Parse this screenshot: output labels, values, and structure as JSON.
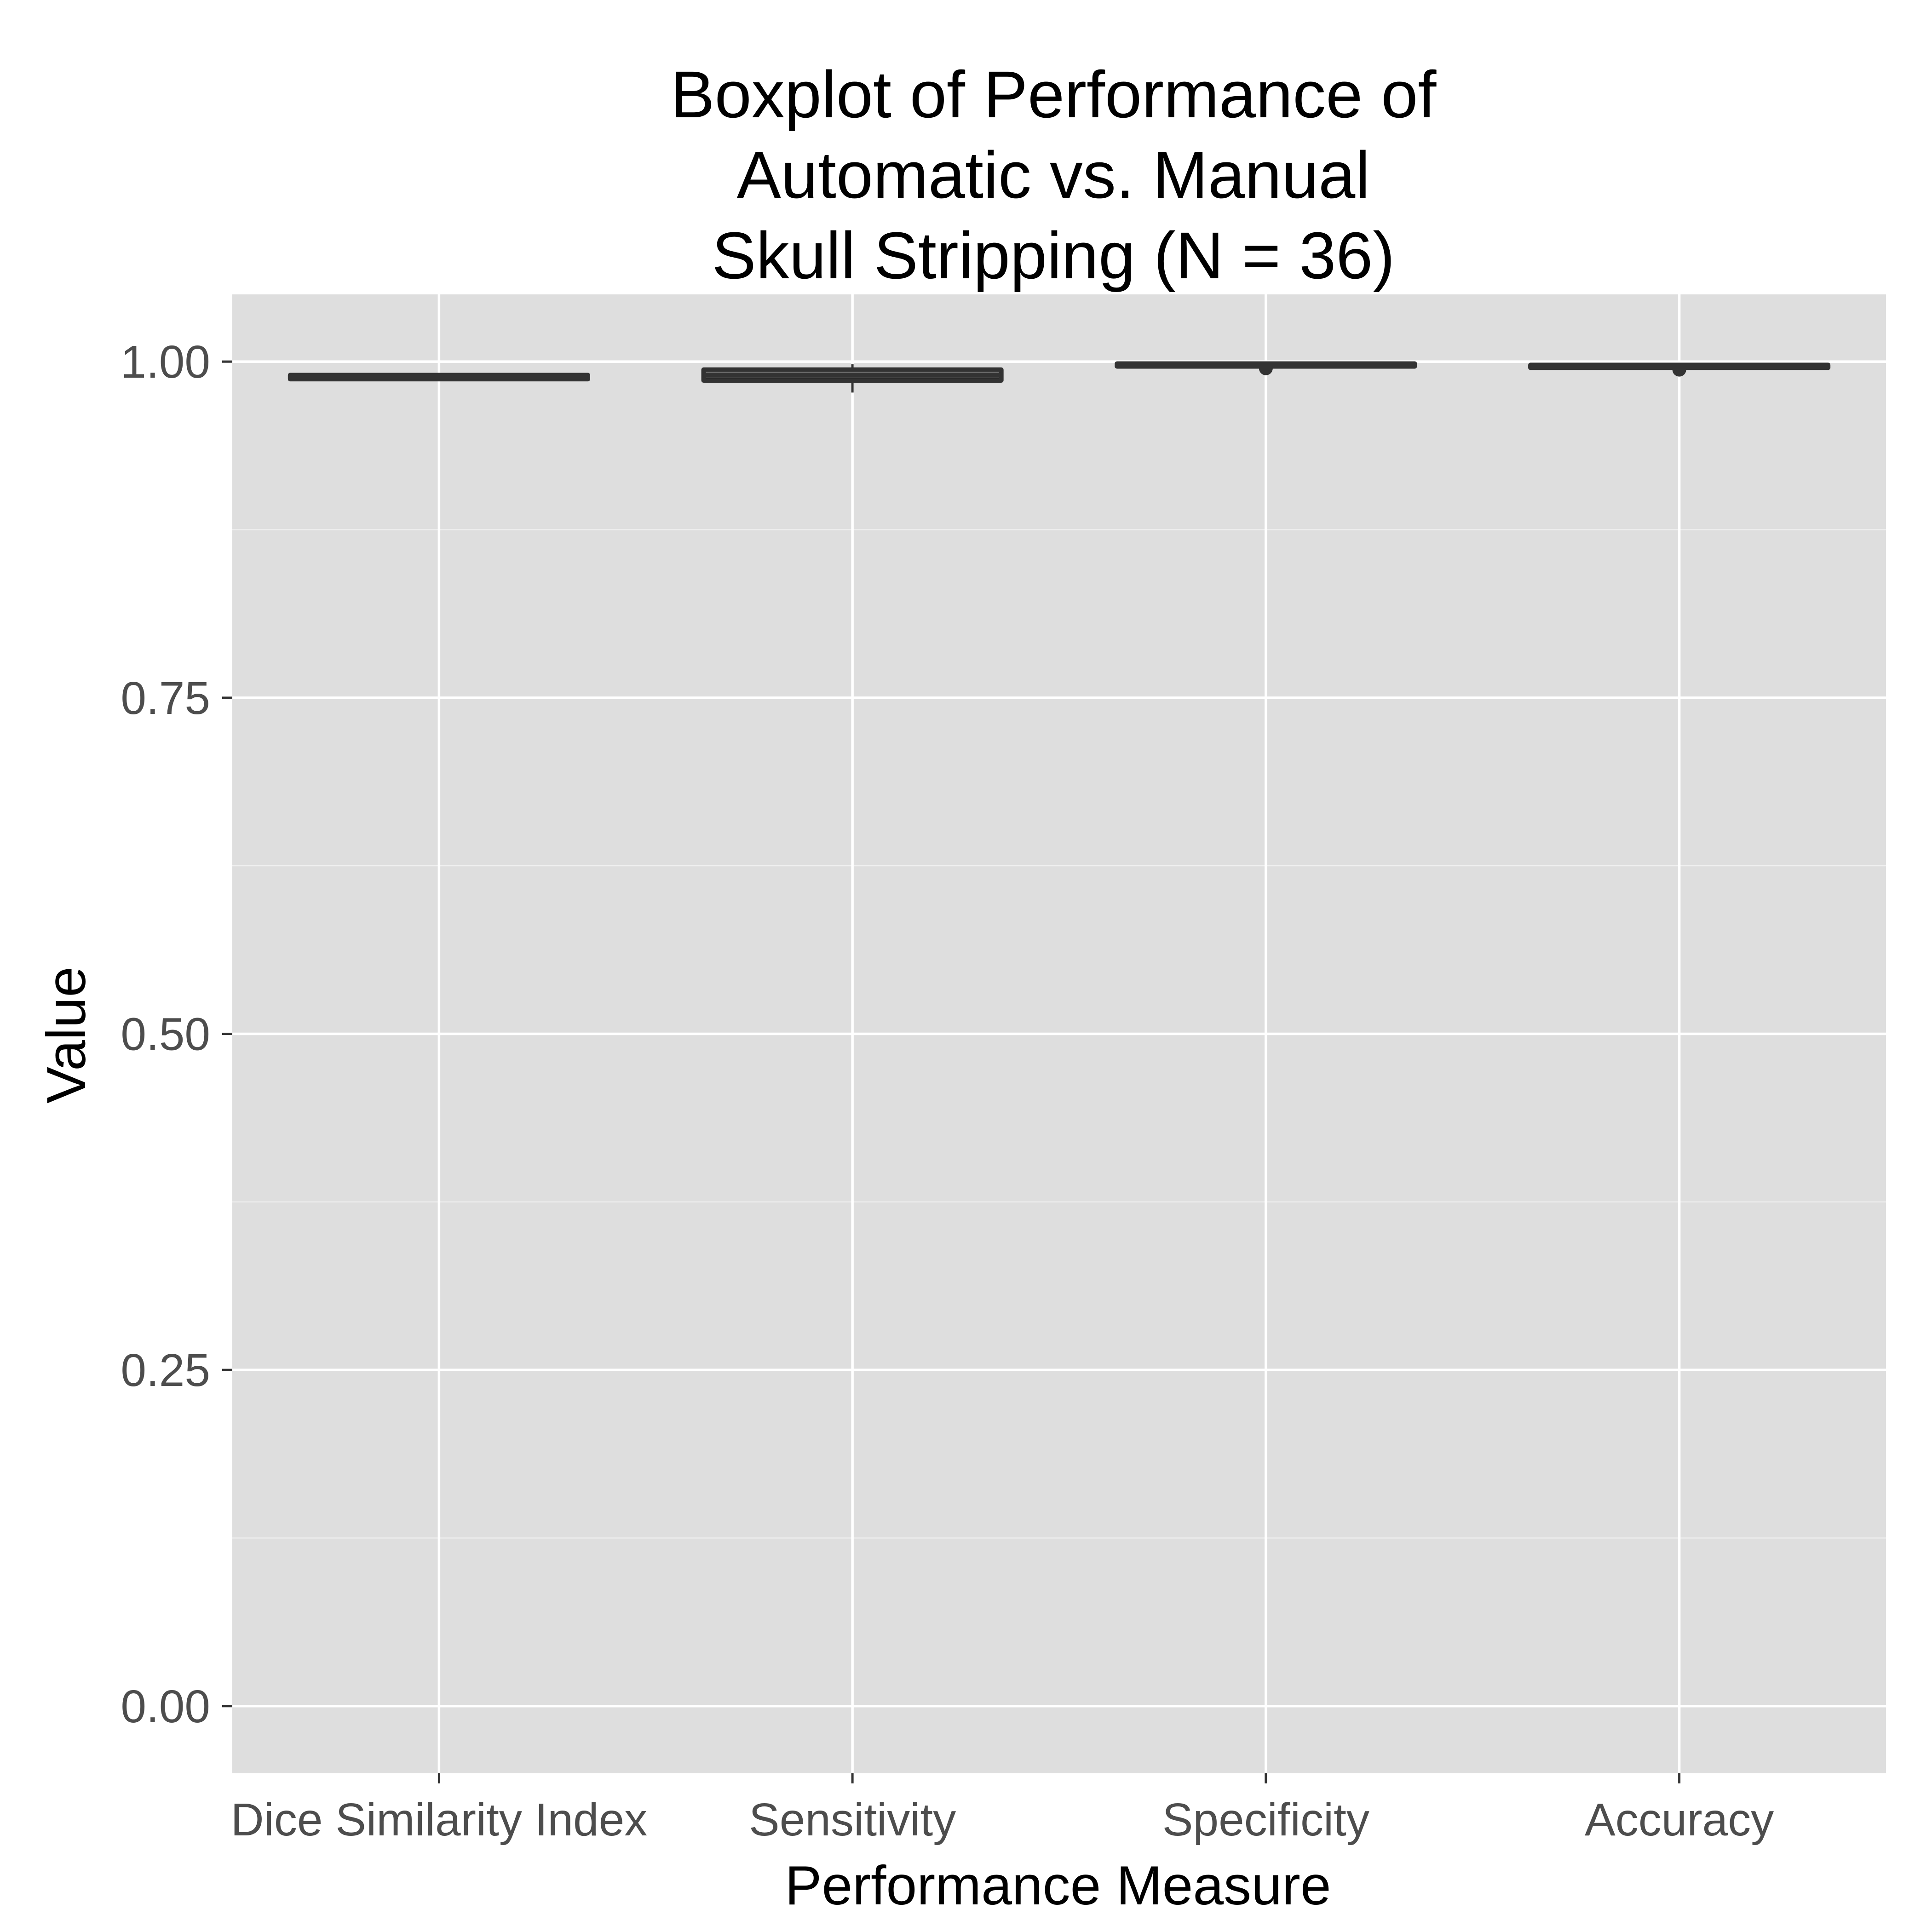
{
  "colors": {
    "panel_background": "#dedede",
    "grid": "#ffffff",
    "box_stroke": "#333333",
    "tick_label": "#4d4d4d",
    "title": "#000000"
  },
  "chart_data": {
    "type": "boxplot",
    "title_lines": [
      "Boxplot of Performance of",
      "Automatic vs. Manual",
      "Skull Stripping (N = 36)"
    ],
    "xlabel": "Performance Measure",
    "ylabel": "Value",
    "ylim": [
      -0.05,
      1.05
    ],
    "y_ticks": [
      0.0,
      0.25,
      0.5,
      0.75,
      1.0
    ],
    "y_tick_labels": [
      "0.00",
      "0.25",
      "0.50",
      "0.75",
      "1.00"
    ],
    "grid": true,
    "categories": [
      "Dice Similarity Index",
      "Sensitivity",
      "Specificity",
      "Accuracy"
    ],
    "boxes": [
      {
        "category": "Dice Similarity Index",
        "whisker_low": 0.986,
        "q1": 0.987,
        "median": 0.989,
        "q3": 0.99,
        "whisker_high": 0.991,
        "outliers": []
      },
      {
        "category": "Sensitivity",
        "whisker_low": 0.977,
        "q1": 0.986,
        "median": 0.99,
        "q3": 0.994,
        "whisker_high": 0.998,
        "outliers": []
      },
      {
        "category": "Specificity",
        "whisker_low": 0.997,
        "q1": 0.997,
        "median": 0.998,
        "q3": 0.998,
        "whisker_high": 0.999,
        "outliers": [
          0.995
        ]
      },
      {
        "category": "Accuracy",
        "whisker_low": 0.996,
        "q1": 0.996,
        "median": 0.997,
        "q3": 0.997,
        "whisker_high": 0.998,
        "outliers": [
          0.994
        ]
      }
    ]
  }
}
